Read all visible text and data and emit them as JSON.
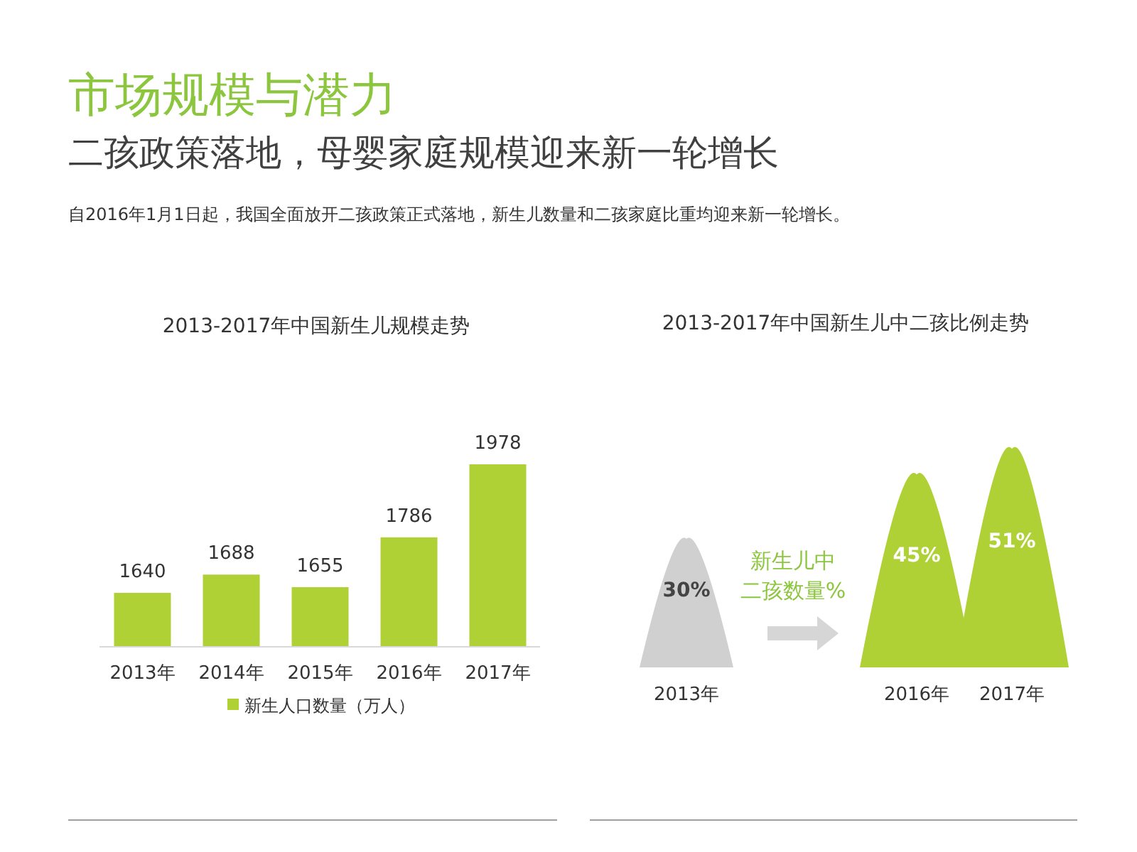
{
  "chart_data": [
    {
      "type": "bar",
      "title": "2013-2017年中国新生儿规模走势",
      "categories": [
        "2013年",
        "2014年",
        "2015年",
        "2016年",
        "2017年"
      ],
      "series": [
        {
          "name": "新生人口数量（万人）",
          "color": "#afd136",
          "values": [
            1640,
            1688,
            1655,
            1786,
            1978
          ]
        }
      ],
      "ylim": [
        1500,
        1978
      ],
      "data_labels": true,
      "legend": "bottom",
      "tick_labels": "x",
      "annotations": [
        "市场规模与潜力",
        "二孩政策落地，母婴家庭规模迎来新一轮增长",
        "自2016年1月1日起，我国全面放开二孩政策正式落地，新生儿数量和二孩家庭比重均迎来新一轮增长。"
      ]
    },
    {
      "type": "other",
      "title": "2013-2017年中国新生儿中二孩比例走势",
      "categories": [
        "2013年",
        "2016年",
        "2017年"
      ],
      "values": [
        30,
        45,
        51
      ],
      "colors": [
        "#d0d0d0",
        "#afd136",
        "#afd136"
      ],
      "value_labels": [
        "30%",
        "45%",
        "51%"
      ],
      "annotations": [
        "新生儿中",
        "二孩数量%"
      ]
    }
  ]
}
